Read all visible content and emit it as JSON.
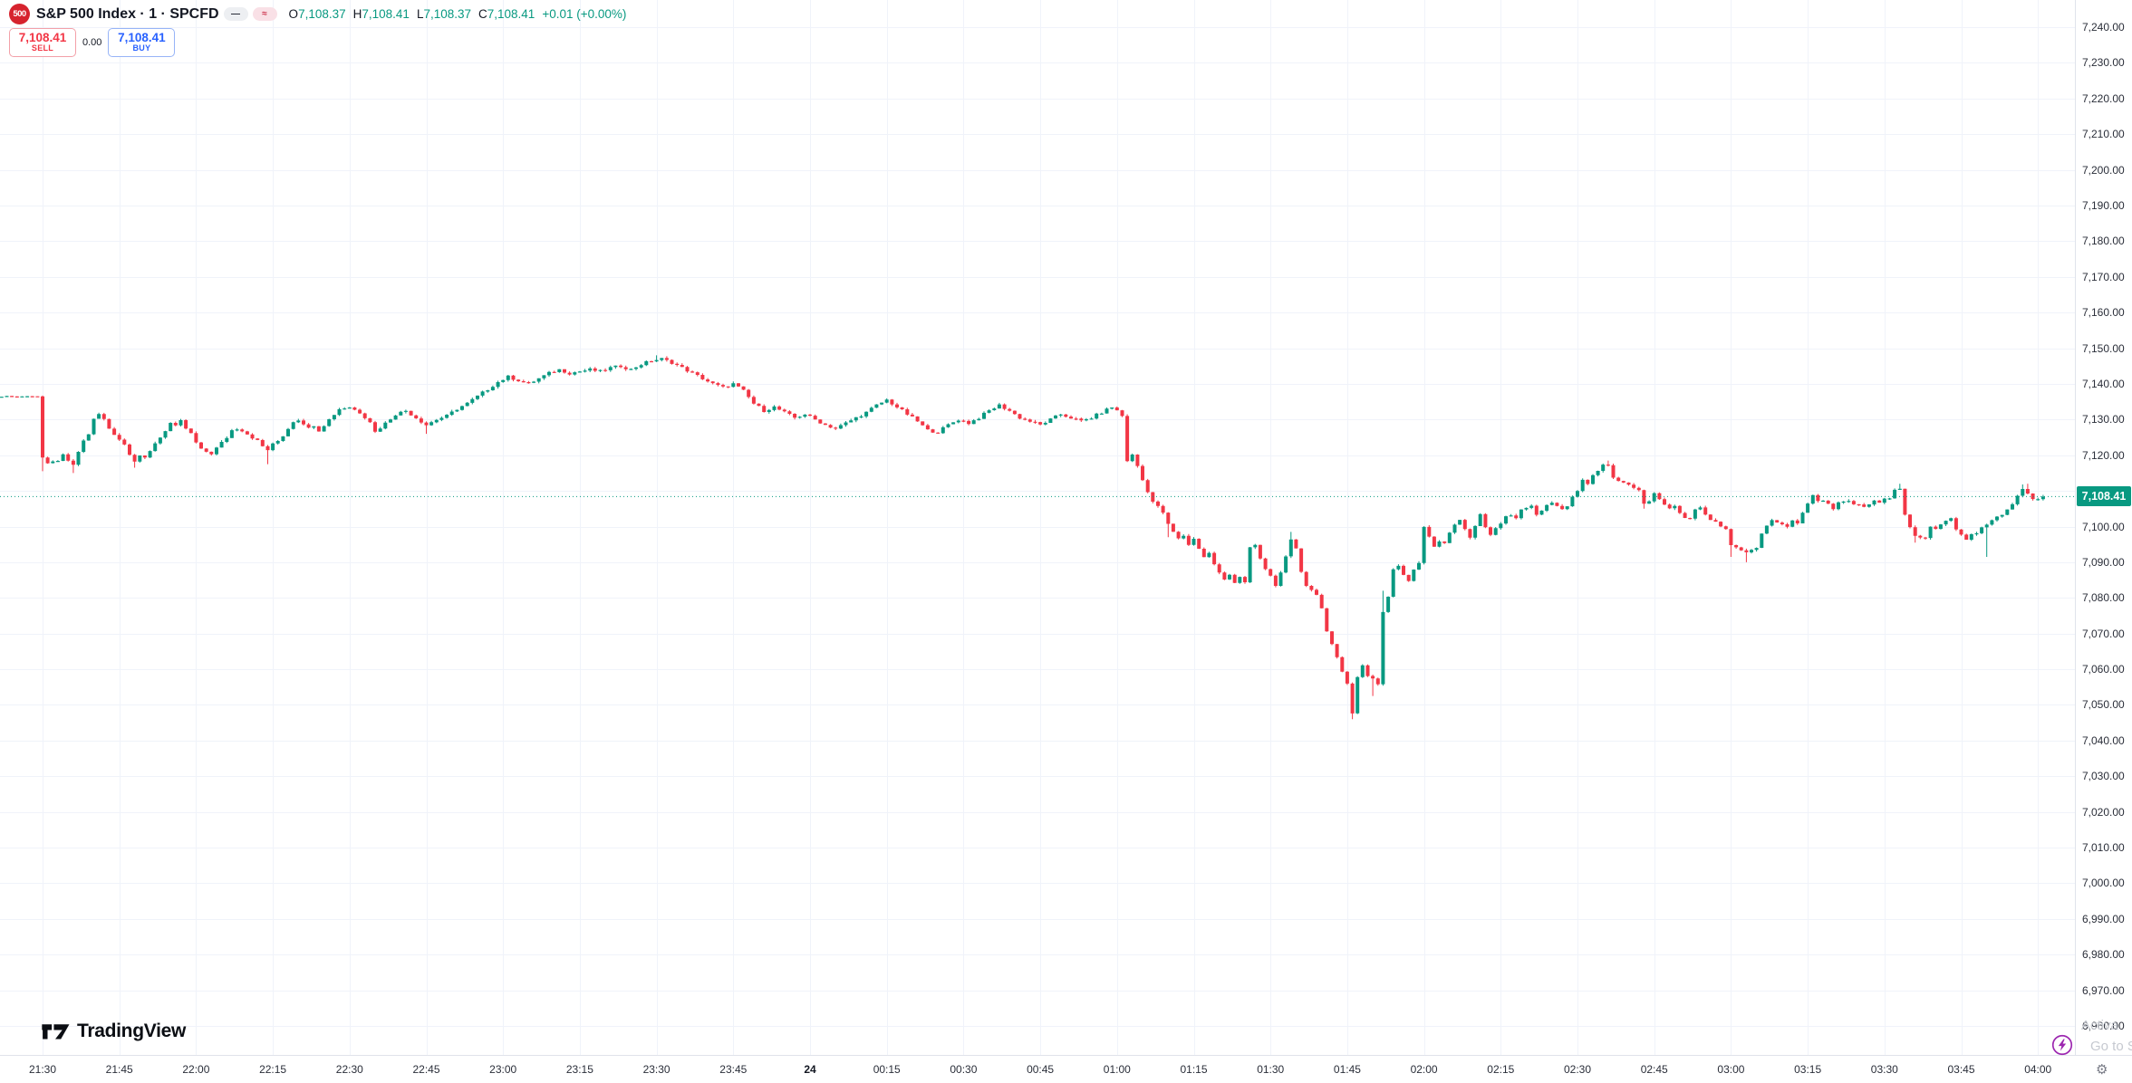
{
  "header": {
    "badge": "500",
    "title": "S&P 500 Index · 1 · SPCFD",
    "tools": {
      "dash": "—",
      "wave": "≈"
    },
    "ohlc": {
      "o_label": "O",
      "o": "7,108.37",
      "h_label": "H",
      "h": "7,108.41",
      "l_label": "L",
      "l": "7,108.37",
      "c_label": "C",
      "c": "7,108.41",
      "change": "+0.01 (+0.00%)"
    }
  },
  "trade_panel": {
    "sell_price": "7,108.41",
    "sell_label": "SELL",
    "spread": "0.00",
    "buy_price": "7,108.41",
    "buy_label": "BUY"
  },
  "logo": {
    "brand": "TradingView"
  },
  "watermark": {
    "line1": "Activa",
    "line2": "Go to S"
  },
  "price_axis": {
    "current": "7,108.41",
    "ticks": [
      "7,240.00",
      "7,230.00",
      "7,220.00",
      "7,210.00",
      "7,200.00",
      "7,190.00",
      "7,180.00",
      "7,170.00",
      "7,160.00",
      "7,150.00",
      "7,140.00",
      "7,130.00",
      "7,120.00",
      "7,110.00",
      "7,100.00",
      "7,090.00",
      "7,080.00",
      "7,070.00",
      "7,060.00",
      "7,050.00",
      "7,040.00",
      "7,030.00",
      "7,020.00",
      "7,010.00",
      "7,000.00",
      "6,990.00",
      "6,980.00",
      "6,970.00",
      "6,960.00"
    ]
  },
  "chart_data": {
    "type": "candlestick",
    "symbol": "S&P 500 Index",
    "exchange": "SPCFD",
    "interval_minutes": 1,
    "last_price": 7108.41,
    "session_open": 7108.37,
    "session_high": 7108.41,
    "session_low": 7108.37,
    "session_close": 7108.41,
    "change": "+0.01 (+0.00%)",
    "up_color": "#089981",
    "down_color": "#F23645",
    "grid_color": "#F0F3FA",
    "y_axis": {
      "max_label": 7240,
      "min_label": 6960,
      "step": 10
    },
    "x_axis": {
      "ticks": [
        {
          "m": 10,
          "label": "21:30"
        },
        {
          "m": 25,
          "label": "21:45"
        },
        {
          "m": 40,
          "label": "22:00"
        },
        {
          "m": 55,
          "label": "22:15"
        },
        {
          "m": 70,
          "label": "22:30"
        },
        {
          "m": 85,
          "label": "22:45"
        },
        {
          "m": 100,
          "label": "23:00"
        },
        {
          "m": 115,
          "label": "23:15"
        },
        {
          "m": 130,
          "label": "23:30"
        },
        {
          "m": 145,
          "label": "23:45"
        },
        {
          "m": 160,
          "label": "24",
          "bold": true
        },
        {
          "m": 175,
          "label": "00:15"
        },
        {
          "m": 190,
          "label": "00:30"
        },
        {
          "m": 205,
          "label": "00:45"
        },
        {
          "m": 220,
          "label": "01:00"
        },
        {
          "m": 235,
          "label": "01:15"
        },
        {
          "m": 250,
          "label": "01:30"
        },
        {
          "m": 265,
          "label": "01:45"
        },
        {
          "m": 280,
          "label": "02:00"
        },
        {
          "m": 295,
          "label": "02:15"
        },
        {
          "m": 310,
          "label": "02:30"
        },
        {
          "m": 325,
          "label": "02:45"
        },
        {
          "m": 340,
          "label": "03:00"
        },
        {
          "m": 355,
          "label": "03:15"
        },
        {
          "m": 370,
          "label": "03:30"
        },
        {
          "m": 385,
          "label": "03:45"
        },
        {
          "m": 400,
          "label": "04:00"
        }
      ]
    },
    "flat_until": 9,
    "path": [
      [
        1,
        7136.3
      ],
      [
        3,
        7136.6
      ],
      [
        5,
        7136.4
      ],
      [
        7,
        7136.6
      ],
      [
        9,
        7136.5
      ],
      [
        10,
        7119
      ],
      [
        11,
        7117.5
      ],
      [
        12,
        7118.5
      ],
      [
        13,
        7118
      ],
      [
        14,
        7120
      ],
      [
        15,
        7118.5
      ],
      [
        16,
        7117
      ],
      [
        17,
        7121
      ],
      [
        18,
        7124
      ],
      [
        19,
        7126
      ],
      [
        20,
        7130
      ],
      [
        21,
        7131.5
      ],
      [
        22,
        7130
      ],
      [
        23,
        7127.5
      ],
      [
        24,
        7126
      ],
      [
        25,
        7124.5
      ],
      [
        26,
        7123
      ],
      [
        27,
        7120.5
      ],
      [
        28,
        7118.5
      ],
      [
        29,
        7120
      ],
      [
        30,
        7119
      ],
      [
        31,
        7121
      ],
      [
        32,
        7123.5
      ],
      [
        33,
        7125
      ],
      [
        34,
        7127
      ],
      [
        35,
        7129
      ],
      [
        36,
        7128
      ],
      [
        37,
        7129.5
      ],
      [
        38,
        7127.5
      ],
      [
        39,
        7126
      ],
      [
        40,
        7123.5
      ],
      [
        41,
        7121.5
      ],
      [
        42,
        7121
      ],
      [
        43,
        7120.5
      ],
      [
        44,
        7122
      ],
      [
        45,
        7123.5
      ],
      [
        46,
        7125
      ],
      [
        47,
        7127
      ],
      [
        48,
        7127.5
      ],
      [
        49,
        7127
      ],
      [
        50,
        7126
      ],
      [
        51,
        7125
      ],
      [
        52,
        7124
      ],
      [
        53,
        7122.5
      ],
      [
        54,
        7121.5
      ],
      [
        55,
        7123
      ],
      [
        56,
        7124
      ],
      [
        57,
        7125.5
      ],
      [
        58,
        7127.5
      ],
      [
        59,
        7129.5
      ],
      [
        60,
        7130
      ],
      [
        61,
        7129
      ],
      [
        62,
        7127.5
      ],
      [
        63,
        7128.5
      ],
      [
        64,
        7127
      ],
      [
        65,
        7128.5
      ],
      [
        66,
        7130
      ],
      [
        67,
        7131.5
      ],
      [
        68,
        7133
      ],
      [
        70,
        7133.5
      ],
      [
        72,
        7132
      ],
      [
        74,
        7129.5
      ],
      [
        75,
        7126.5
      ],
      [
        77,
        7129
      ],
      [
        79,
        7131.5
      ],
      [
        81,
        7132.5
      ],
      [
        83,
        7130.5
      ],
      [
        85,
        7128.5
      ],
      [
        87,
        7130
      ],
      [
        89,
        7131
      ],
      [
        91,
        7133
      ],
      [
        93,
        7134.5
      ],
      [
        95,
        7136.5
      ],
      [
        97,
        7138.5
      ],
      [
        99,
        7140.5
      ],
      [
        101,
        7142
      ],
      [
        103,
        7141
      ],
      [
        105,
        7140
      ],
      [
        107,
        7141.5
      ],
      [
        109,
        7143
      ],
      [
        111,
        7144
      ],
      [
        113,
        7143
      ],
      [
        115,
        7143.5
      ],
      [
        117,
        7144
      ],
      [
        119,
        7143.5
      ],
      [
        121,
        7144.5
      ],
      [
        123,
        7145
      ],
      [
        125,
        7144
      ],
      [
        127,
        7145.5
      ],
      [
        129,
        7146.5
      ],
      [
        131,
        7147
      ],
      [
        133,
        7146
      ],
      [
        135,
        7144.5
      ],
      [
        137,
        7143
      ],
      [
        139,
        7141.5
      ],
      [
        141,
        7140
      ],
      [
        143,
        7139
      ],
      [
        145,
        7140
      ],
      [
        147,
        7138
      ],
      [
        149,
        7134.5
      ],
      [
        151,
        7132.5
      ],
      [
        153,
        7133.5
      ],
      [
        155,
        7132
      ],
      [
        157,
        7130.5
      ],
      [
        159,
        7131.5
      ],
      [
        161,
        7130
      ],
      [
        163,
        7128.5
      ],
      [
        165,
        7127.5
      ],
      [
        167,
        7129
      ],
      [
        169,
        7130.5
      ],
      [
        171,
        7132
      ],
      [
        173,
        7134
      ],
      [
        175,
        7135.5
      ],
      [
        177,
        7133.5
      ],
      [
        179,
        7131.5
      ],
      [
        181,
        7129.5
      ],
      [
        183,
        7127
      ],
      [
        185,
        7126.5
      ],
      [
        187,
        7128.5
      ],
      [
        189,
        7130
      ],
      [
        191,
        7129
      ],
      [
        193,
        7130.5
      ],
      [
        195,
        7132.5
      ],
      [
        197,
        7134
      ],
      [
        199,
        7132.5
      ],
      [
        201,
        7130.5
      ],
      [
        203,
        7129.5
      ],
      [
        205,
        7128.5
      ],
      [
        207,
        7130
      ],
      [
        209,
        7131.5
      ],
      [
        211,
        7130.5
      ],
      [
        213,
        7129.5
      ],
      [
        215,
        7130.5
      ],
      [
        217,
        7132
      ],
      [
        219,
        7133.5
      ],
      [
        220,
        7132.5
      ],
      [
        221,
        7131
      ],
      [
        222,
        7118.5
      ],
      [
        223,
        7120
      ],
      [
        224,
        7117
      ],
      [
        225,
        7113
      ],
      [
        226,
        7110
      ],
      [
        227,
        7107
      ],
      [
        228,
        7105.5
      ],
      [
        229,
        7104
      ],
      [
        230,
        7100.5
      ],
      [
        231,
        7098.5
      ],
      [
        232,
        7096.5
      ],
      [
        233,
        7097.5
      ],
      [
        234,
        7095
      ],
      [
        235,
        7096.5
      ],
      [
        236,
        7094
      ],
      [
        237,
        7091.5
      ],
      [
        238,
        7092.5
      ],
      [
        239,
        7089.5
      ],
      [
        240,
        7087
      ],
      [
        241,
        7085
      ],
      [
        242,
        7086.5
      ],
      [
        243,
        7084.5
      ],
      [
        244,
        7086
      ],
      [
        245,
        7084.5
      ],
      [
        246,
        7094
      ],
      [
        247,
        7094.5
      ],
      [
        248,
        7091
      ],
      [
        249,
        7088
      ],
      [
        250,
        7086
      ],
      [
        251,
        7083.5
      ],
      [
        252,
        7087
      ],
      [
        253,
        7092
      ],
      [
        254,
        7096
      ],
      [
        255,
        7093.5
      ],
      [
        256,
        7087
      ],
      [
        257,
        7083.5
      ],
      [
        258,
        7082.5
      ],
      [
        259,
        7081
      ],
      [
        260,
        7077
      ],
      [
        261,
        7071
      ],
      [
        262,
        7067
      ],
      [
        263,
        7063
      ],
      [
        264,
        7059
      ],
      [
        265,
        7056
      ],
      [
        266,
        7048
      ],
      [
        267,
        7058
      ],
      [
        268,
        7061
      ],
      [
        269,
        7058
      ],
      [
        270,
        7057.5
      ],
      [
        271,
        7056
      ],
      [
        272,
        7076
      ],
      [
        273,
        7080.5
      ],
      [
        274,
        7088
      ],
      [
        275,
        7089
      ],
      [
        276,
        7086.5
      ],
      [
        277,
        7084.5
      ],
      [
        278,
        7088
      ],
      [
        279,
        7090
      ],
      [
        280,
        7100
      ],
      [
        281,
        7097.5
      ],
      [
        282,
        7094.5
      ],
      [
        283,
        7096
      ],
      [
        284,
        7095.5
      ],
      [
        285,
        7098
      ],
      [
        286,
        7100.5
      ],
      [
        287,
        7102
      ],
      [
        288,
        7099.5
      ],
      [
        289,
        7097
      ],
      [
        290,
        7100
      ],
      [
        291,
        7103.5
      ],
      [
        292,
        7099.5
      ],
      [
        293,
        7097.5
      ],
      [
        294,
        7099.5
      ],
      [
        295,
        7101
      ],
      [
        296,
        7102.5
      ],
      [
        297,
        7103.5
      ],
      [
        298,
        7102.5
      ],
      [
        299,
        7104.5
      ],
      [
        300,
        7105.5
      ],
      [
        301,
        7106
      ],
      [
        302,
        7103
      ],
      [
        303,
        7104.5
      ],
      [
        304,
        7106
      ],
      [
        305,
        7106.5
      ],
      [
        306,
        7106
      ],
      [
        307,
        7105
      ],
      [
        308,
        7105.5
      ],
      [
        309,
        7108
      ],
      [
        310,
        7110
      ],
      [
        311,
        7113
      ],
      [
        312,
        7112
      ],
      [
        313,
        7114.5
      ],
      [
        314,
        7115.5
      ],
      [
        315,
        7117
      ],
      [
        316,
        7117.5
      ],
      [
        317,
        7114
      ],
      [
        318,
        7112.5
      ],
      [
        319,
        7112
      ],
      [
        320,
        7111.5
      ],
      [
        321,
        7110.5
      ],
      [
        322,
        7110
      ],
      [
        323,
        7106.5
      ],
      [
        324,
        7107
      ],
      [
        325,
        7109.5
      ],
      [
        326,
        7107.5
      ],
      [
        327,
        7106
      ],
      [
        328,
        7105
      ],
      [
        329,
        7105.5
      ],
      [
        330,
        7103.5
      ],
      [
        331,
        7102.5
      ],
      [
        332,
        7102
      ],
      [
        333,
        7104.5
      ],
      [
        334,
        7105.5
      ],
      [
        335,
        7103
      ],
      [
        336,
        7102
      ],
      [
        337,
        7101
      ],
      [
        338,
        7100
      ],
      [
        339,
        7099
      ],
      [
        340,
        7094.5
      ],
      [
        341,
        7094
      ],
      [
        342,
        7093.5
      ],
      [
        343,
        7092.5
      ],
      [
        344,
        7093.5
      ],
      [
        345,
        7094
      ],
      [
        346,
        7098
      ],
      [
        347,
        7100.5
      ],
      [
        348,
        7102
      ],
      [
        349,
        7101
      ],
      [
        350,
        7100.5
      ],
      [
        351,
        7100
      ],
      [
        352,
        7101.5
      ],
      [
        353,
        7101
      ],
      [
        354,
        7104
      ],
      [
        355,
        7106.5
      ],
      [
        356,
        7108.5
      ],
      [
        357,
        7107
      ],
      [
        358,
        7107.5
      ],
      [
        359,
        7106.5
      ],
      [
        360,
        7105
      ],
      [
        361,
        7106.5
      ],
      [
        362,
        7107
      ],
      [
        363,
        7107.5
      ],
      [
        364,
        7106
      ],
      [
        365,
        7106.5
      ],
      [
        366,
        7105.5
      ],
      [
        367,
        7106.5
      ],
      [
        368,
        7107
      ],
      [
        369,
        7106.5
      ],
      [
        370,
        7107.5
      ],
      [
        371,
        7108
      ],
      [
        372,
        7110
      ],
      [
        373,
        7110.5
      ],
      [
        374,
        7103.5
      ],
      [
        375,
        7099.5
      ],
      [
        376,
        7097.5
      ],
      [
        377,
        7097
      ],
      [
        378,
        7096.5
      ],
      [
        379,
        7100
      ],
      [
        380,
        7099
      ],
      [
        381,
        7101
      ],
      [
        382,
        7102
      ],
      [
        383,
        7102.5
      ],
      [
        384,
        7099.5
      ],
      [
        385,
        7097.5
      ],
      [
        386,
        7096.5
      ],
      [
        387,
        7097.5
      ],
      [
        388,
        7098
      ],
      [
        389,
        7099.5
      ],
      [
        390,
        7100.5
      ],
      [
        391,
        7102
      ],
      [
        392,
        7103
      ],
      [
        393,
        7103.5
      ],
      [
        394,
        7105
      ],
      [
        395,
        7106.5
      ],
      [
        396,
        7108.5
      ],
      [
        397,
        7110.5
      ],
      [
        398,
        7109
      ],
      [
        399,
        7107.5
      ],
      [
        400,
        7108
      ],
      [
        401,
        7108.41
      ]
    ],
    "wick_events": [
      {
        "t": 10,
        "low": 7115.5
      },
      {
        "t": 16,
        "low": 7115
      },
      {
        "t": 28,
        "low": 7116.5
      },
      {
        "t": 54,
        "low": 7117.5
      },
      {
        "t": 85,
        "low": 7126
      },
      {
        "t": 130,
        "high": 7148
      },
      {
        "t": 230,
        "low": 7097
      },
      {
        "t": 254,
        "high": 7098.5
      },
      {
        "t": 266,
        "low": 7046
      },
      {
        "t": 270,
        "low": 7052.5
      },
      {
        "t": 272,
        "high": 7082
      },
      {
        "t": 316,
        "high": 7118.5
      },
      {
        "t": 323,
        "low": 7105
      },
      {
        "t": 340,
        "low": 7091.5
      },
      {
        "t": 343,
        "low": 7090
      },
      {
        "t": 373,
        "high": 7112
      },
      {
        "t": 376,
        "low": 7095.5
      },
      {
        "t": 390,
        "low": 7091.5
      },
      {
        "t": 397,
        "high": 7111.8
      },
      {
        "t": 398,
        "high": 7112
      }
    ]
  }
}
